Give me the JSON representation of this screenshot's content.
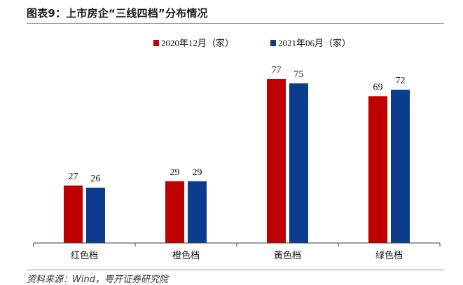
{
  "header": {
    "title": "图表9：上市房企“三线四档”分布情况",
    "source": "资料来源：Wind，粤开证券研究院"
  },
  "chart_data": {
    "type": "bar",
    "title": "图表9：上市房企“三线四档”分布情况",
    "categories": [
      "红色档",
      "橙色档",
      "黄色档",
      "绿色档"
    ],
    "series": [
      {
        "name": "2020年12月（家）",
        "values": [
          27,
          29,
          77,
          69
        ],
        "color": "#C00000"
      },
      {
        "name": "2021年06月（家）",
        "values": [
          26,
          29,
          75,
          72
        ],
        "color": "#0B3D8C"
      }
    ],
    "xlabel": "",
    "ylabel": "",
    "ylim": [
      0,
      80
    ],
    "grid": false,
    "legend_position": "top-center",
    "data_labels": true
  }
}
